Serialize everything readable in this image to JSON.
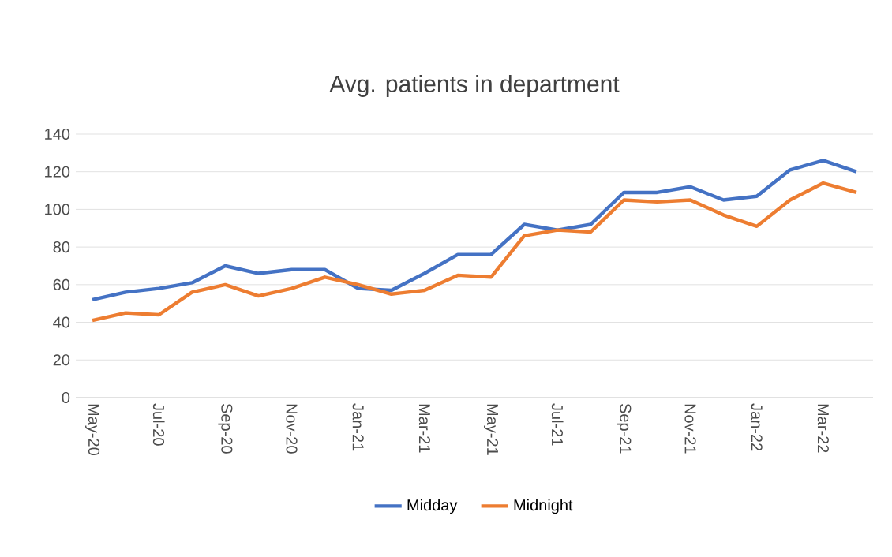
{
  "chart_data": {
    "type": "line",
    "title": "Avg. patients in department",
    "categories": [
      "May-20",
      null,
      "Jul-20",
      null,
      "Sep-20",
      null,
      "Nov-20",
      null,
      "Jan-21",
      null,
      "Mar-21",
      null,
      "May-21",
      null,
      "Jul-21",
      null,
      "Sep-21",
      null,
      "Nov-21",
      null,
      "Jan-22",
      null,
      "Mar-22",
      null
    ],
    "series": [
      {
        "name": "Midday",
        "color": "#4472c4",
        "values": [
          52,
          56,
          58,
          61,
          70,
          66,
          68,
          68,
          58,
          57,
          66,
          76,
          76,
          92,
          89,
          92,
          109,
          109,
          112,
          105,
          107,
          121,
          126,
          120
        ]
      },
      {
        "name": "Midnight",
        "color": "#ed7d31",
        "values": [
          41,
          45,
          44,
          56,
          60,
          54,
          58,
          64,
          60,
          55,
          57,
          65,
          64,
          86,
          89,
          88,
          105,
          104,
          105,
          97,
          91,
          105,
          114,
          109
        ]
      }
    ],
    "ylim": [
      0,
      140
    ],
    "yticks": [
      0,
      20,
      40,
      60,
      80,
      100,
      120,
      140
    ],
    "grid": "y",
    "legend": "bottom",
    "marker": "none",
    "line_style": "solid"
  }
}
